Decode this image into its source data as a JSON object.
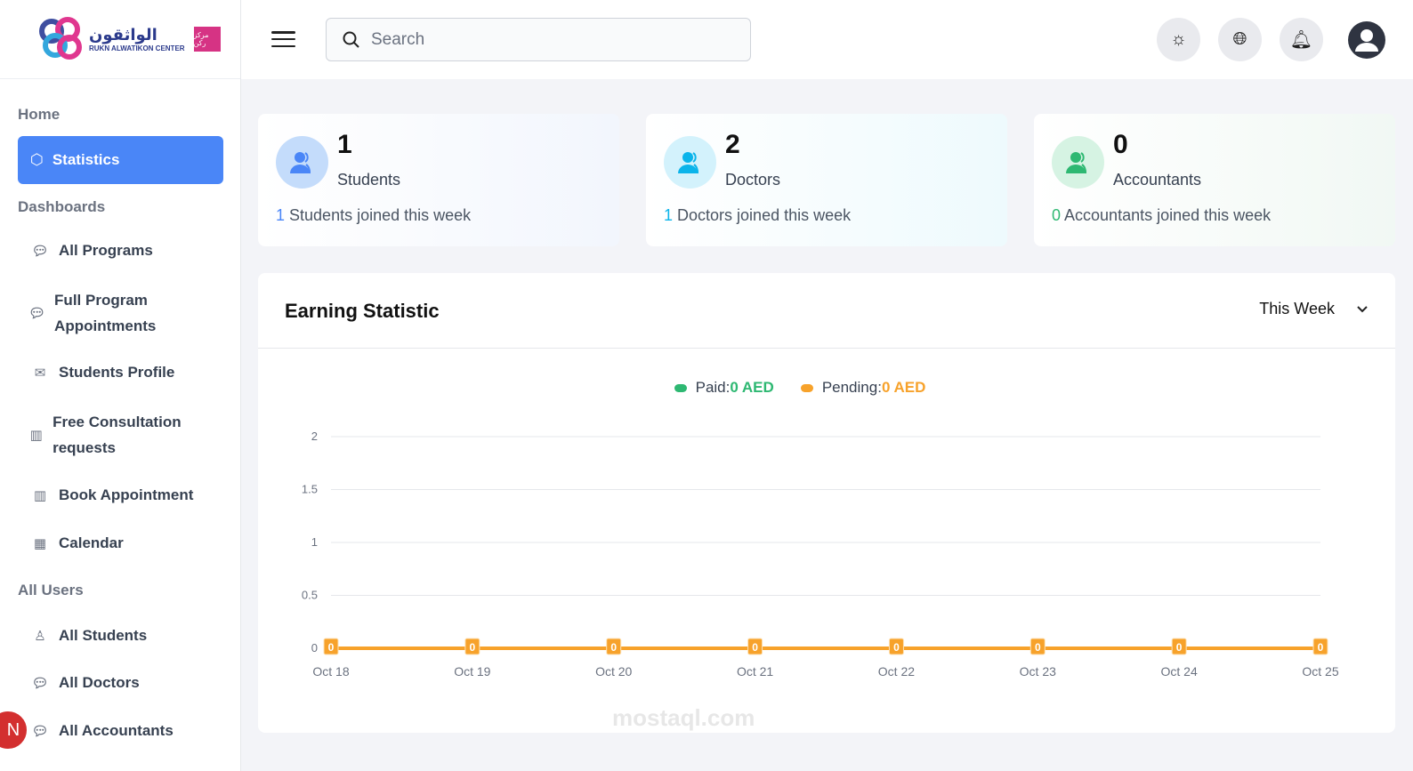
{
  "logo": {
    "arabic": "الواثقون",
    "english": "RUKN ALWATIKON CENTER",
    "badge": "مركز ركن"
  },
  "sidebar": {
    "home": "Home",
    "active": "Statistics",
    "dashboards": "Dashboards",
    "items": [
      {
        "label": "All Programs",
        "icon": "chat-icon"
      },
      {
        "label": "Full Program Appointments",
        "icon": "chat-icon"
      },
      {
        "label": "Students Profile",
        "icon": "mail-icon"
      },
      {
        "label": "Free Consultation requests",
        "icon": "map-icon"
      },
      {
        "label": "Book Appointment",
        "icon": "map-icon"
      },
      {
        "label": "Calendar",
        "icon": "calendar-icon"
      }
    ],
    "all_users": "All Users",
    "users": [
      {
        "label": "All Students",
        "icon": "student-icon"
      },
      {
        "label": "All Doctors",
        "icon": "chat-icon"
      },
      {
        "label": "All Accountants",
        "icon": "chat-icon"
      }
    ],
    "avatar": "N"
  },
  "header": {
    "search_placeholder": "Search"
  },
  "cards": [
    {
      "count": "1",
      "label": "Students",
      "week": "1",
      "week_text": "Students joined this week",
      "color": "#4a86f7",
      "bg": "#c4dcfb"
    },
    {
      "count": "2",
      "label": "Doctors",
      "week": "1",
      "week_text": "Doctors joined this week",
      "color": "#0bb4ea",
      "bg": "#d3f2fc"
    },
    {
      "count": "0",
      "label": "Accountants",
      "week": "0",
      "week_text": "Accountants joined this week",
      "color": "#2eb872",
      "bg": "#d6f3e3"
    }
  ],
  "earning": {
    "title": "Earning Statistic",
    "period": "This Week",
    "paid_label": "Paid:",
    "paid_value": "0 AED",
    "pending_label": "Pending:",
    "pending_value": "0 AED"
  },
  "chart_data": {
    "type": "line",
    "categories": [
      "Oct 18",
      "Oct 19",
      "Oct 20",
      "Oct 21",
      "Oct 22",
      "Oct 23",
      "Oct 24",
      "Oct 25"
    ],
    "series": [
      {
        "name": "Paid",
        "values": [
          0,
          0,
          0,
          0,
          0,
          0,
          0,
          0
        ],
        "color": "#2eb872"
      },
      {
        "name": "Pending",
        "values": [
          0,
          0,
          0,
          0,
          0,
          0,
          0,
          0
        ],
        "color": "#f7a22b"
      }
    ],
    "yticks": [
      "0",
      "0.5",
      "1",
      "1.5",
      "2"
    ],
    "ylim": [
      0,
      2
    ],
    "grid": true,
    "legend": "top"
  },
  "watermark": "mostaql.com"
}
